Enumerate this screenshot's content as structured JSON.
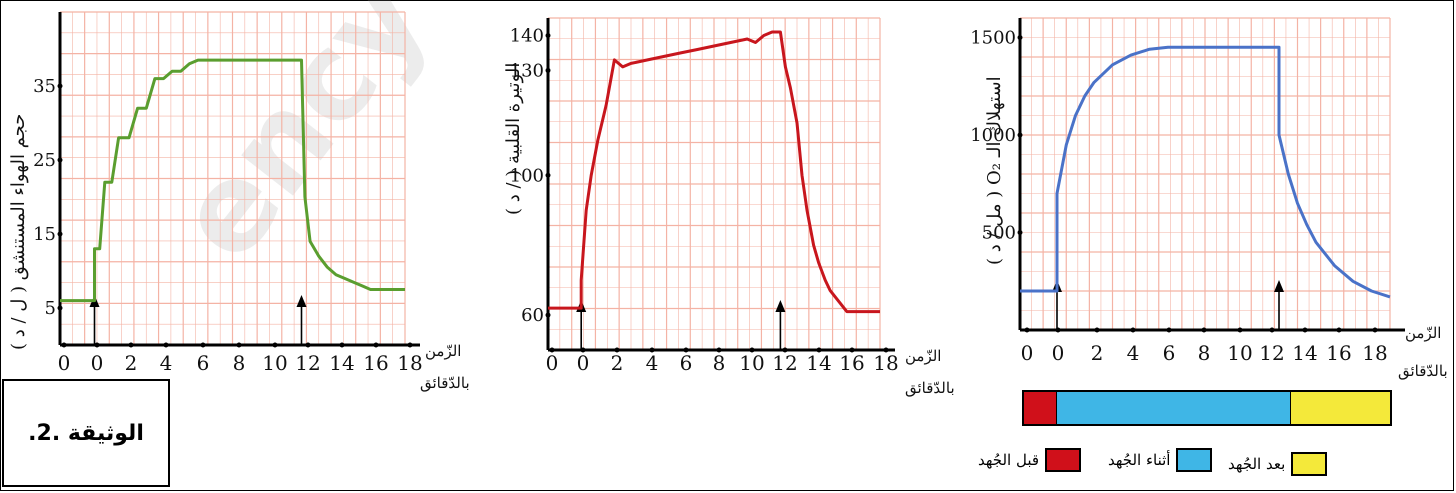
{
  "document_label": "الوثيقة .2.",
  "watermark": "ency-education",
  "colors": {
    "grid": "#f4b3a5",
    "axis": "#000000",
    "chart1_line": "#5a9e2f",
    "chart2_line": "#c8161d",
    "chart3_line": "#4a72c8",
    "before": "#d0101a",
    "during": "#3fb6e6",
    "after": "#f4e93a"
  },
  "legend": {
    "before": "قبل الجُهد",
    "during": "أثناء الجُهد",
    "after": "بعد الجُهد"
  },
  "chart_data": [
    {
      "type": "line",
      "ylabel": "حجم الهواء المستنشق ( ل / د )",
      "xlabel_line1": "الزّمن",
      "xlabel_line2": "بالدّقائق",
      "x_ticks": [
        "0",
        "0",
        "2",
        "4",
        "6",
        "8",
        "10",
        "12",
        "14",
        "16",
        "18"
      ],
      "y_ticks": [
        "5",
        "15",
        "25",
        "35"
      ],
      "ylim": [
        0,
        45
      ],
      "xlim": [
        -2,
        18
      ],
      "arrows_at": [
        0,
        12
      ],
      "x": [
        -2,
        0,
        0,
        0.3,
        0.6,
        1,
        1.4,
        2,
        2.5,
        3,
        3.5,
        4,
        4.5,
        5,
        5.5,
        6,
        7,
        8,
        9,
        10,
        11,
        11.5,
        12,
        12.2,
        12.5,
        13,
        13.5,
        14,
        14.5,
        15,
        15.5,
        16,
        17,
        18
      ],
      "y": [
        6,
        6,
        13,
        13,
        22,
        22,
        28,
        28,
        32,
        32,
        36,
        36,
        37,
        37,
        38,
        38.5,
        38.5,
        38.5,
        38.5,
        38.5,
        38.5,
        38.5,
        38.5,
        20,
        14,
        12,
        10.5,
        9.5,
        9,
        8.5,
        8,
        7.5,
        7.5,
        7.5
      ]
    },
    {
      "type": "line",
      "ylabel": "الوتيرة القلبية ( / د )",
      "xlabel_line1": "الزّمن",
      "xlabel_line2": "بالدّقائق",
      "x_ticks": [
        "0",
        "0",
        "2",
        "4",
        "6",
        "8",
        "10",
        "12",
        "14",
        "16",
        "18"
      ],
      "y_ticks": [
        "60",
        "100",
        "130",
        "140"
      ],
      "ylim": [
        50,
        145
      ],
      "xlim": [
        -2,
        18
      ],
      "arrows_at": [
        0,
        12
      ],
      "x": [
        -2,
        0,
        0,
        0.3,
        0.6,
        1,
        1.5,
        2,
        2.5,
        3,
        4,
        5,
        6,
        7,
        8,
        9,
        10,
        10.5,
        11,
        11.5,
        12,
        12.3,
        12.6,
        13,
        13.3,
        13.6,
        14,
        14.3,
        14.7,
        15,
        15.5,
        16,
        16.5,
        17,
        18
      ],
      "y": [
        62,
        62,
        70,
        90,
        100,
        110,
        120,
        133,
        131,
        132,
        133,
        134,
        135,
        136,
        137,
        138,
        139,
        138,
        140,
        141,
        141,
        131,
        125,
        115,
        100,
        90,
        80,
        75,
        70,
        67,
        64,
        61,
        61,
        61,
        61
      ]
    },
    {
      "type": "line",
      "ylabel": "استهلاك الـ O₂ ( مل / د )",
      "xlabel_line1": "الزّمن",
      "xlabel_line2": "بالدّقائق",
      "x_ticks": [
        "0",
        "0",
        "2",
        "4",
        "6",
        "8",
        "10",
        "12",
        "14",
        "16",
        "18"
      ],
      "y_ticks": [
        "500",
        "1000",
        "1500"
      ],
      "ylim": [
        0,
        1600
      ],
      "xlim": [
        -2,
        18
      ],
      "arrows_at": [
        0,
        12
      ],
      "x": [
        -2,
        0,
        0,
        0.5,
        1,
        1.5,
        2,
        3,
        4,
        5,
        6,
        7,
        8,
        9,
        10,
        11,
        12,
        12,
        12.5,
        13,
        13.5,
        14,
        15,
        16,
        17,
        18
      ],
      "y": [
        200,
        200,
        700,
        950,
        1100,
        1200,
        1270,
        1360,
        1410,
        1440,
        1450,
        1450,
        1450,
        1450,
        1450,
        1450,
        1450,
        1000,
        800,
        650,
        540,
        450,
        330,
        250,
        200,
        170
      ]
    }
  ]
}
